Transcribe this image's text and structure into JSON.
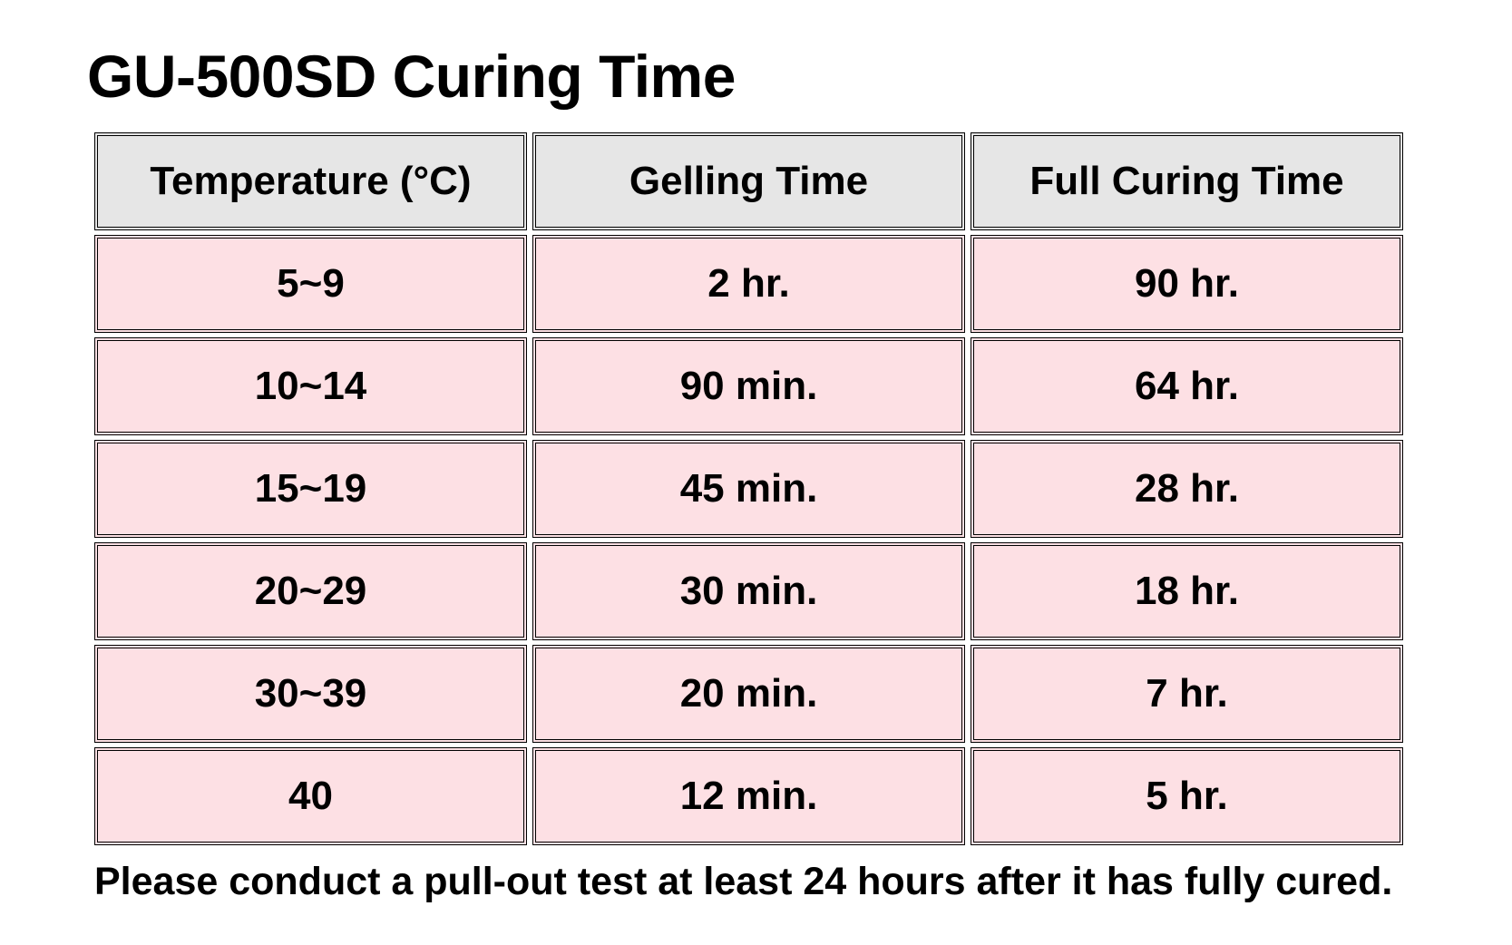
{
  "title": "GU-500SD Curing Time",
  "table": {
    "headers": [
      "Temperature (°C)",
      "Gelling Time",
      "Full Curing Time"
    ],
    "rows": [
      [
        "5~9",
        "2 hr.",
        "90 hr."
      ],
      [
        "10~14",
        "90 min.",
        "64 hr."
      ],
      [
        "15~19",
        "45 min.",
        "28 hr."
      ],
      [
        "20~29",
        "30 min.",
        "18 hr."
      ],
      [
        "30~39",
        "20 min.",
        "7 hr."
      ],
      [
        "40",
        "12 min.",
        "5 hr."
      ]
    ]
  },
  "footnote": "Please conduct a pull-out test at least 24 hours after it has fully cured.",
  "colors": {
    "header_bg": "#e6e6e6",
    "row_bg": "#fde0e4",
    "border": "#000000"
  }
}
